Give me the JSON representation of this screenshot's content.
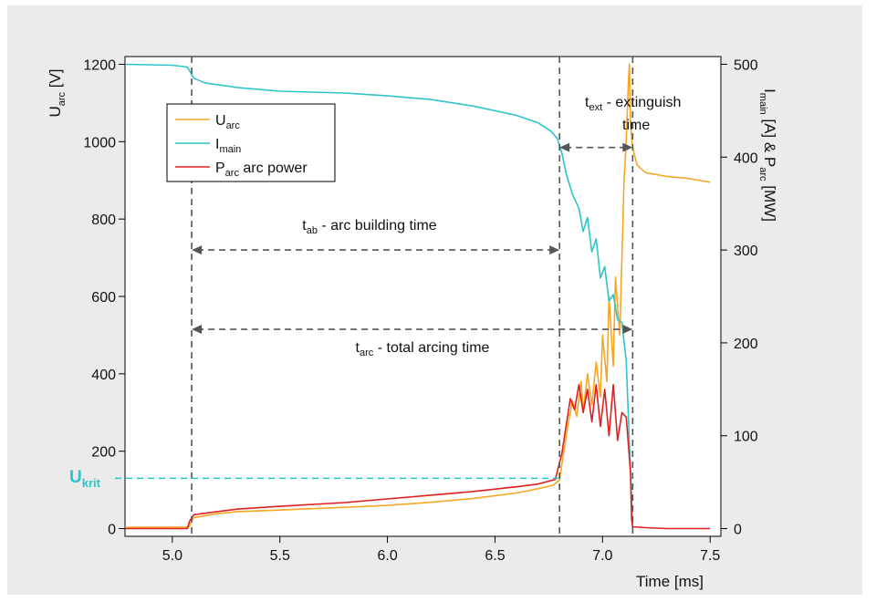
{
  "chart_data": {
    "type": "line",
    "xlabel": "Time [ms]",
    "x_ticks": [
      5.0,
      5.5,
      6.0,
      6.5,
      7.0,
      7.5
    ],
    "xlim": [
      4.78,
      7.55
    ],
    "y_left": {
      "label_main": "U",
      "label_sub": "arc",
      "label_unit": " [V]",
      "ylim": [
        -20,
        1220
      ],
      "ticks": [
        0,
        200,
        400,
        600,
        800,
        1000,
        1200
      ]
    },
    "y_right": {
      "label_main": "I",
      "label_sub": "main",
      "label_mid": " [A] & P",
      "label_sub2": "arc",
      "label_unit": " [MW]",
      "ylim": [
        -8.3,
        508.3
      ],
      "ticks": [
        0,
        100,
        200,
        300,
        400,
        500
      ]
    },
    "legend": {
      "placement": "top-left",
      "entries": [
        {
          "main": "U",
          "sub": "arc",
          "rest": ""
        },
        {
          "main": "I",
          "sub": "main",
          "rest": ""
        },
        {
          "main": "P",
          "sub": "arc",
          "rest": " arc power"
        }
      ]
    },
    "colors": {
      "U_arc": "#f5a623",
      "I_main": "#2ec4cc",
      "P_arc": "#e02020",
      "marker": "#555555",
      "ukrit": "#2ec4cc"
    },
    "series": [
      {
        "name": "U_arc",
        "axis": "left",
        "x": [
          4.78,
          5.07,
          5.08,
          5.09,
          5.1,
          5.2,
          5.3,
          5.5,
          5.8,
          6.0,
          6.2,
          6.4,
          6.6,
          6.7,
          6.77,
          6.8,
          6.82,
          6.84,
          6.86,
          6.88,
          6.9,
          6.91,
          6.93,
          6.95,
          6.97,
          6.99,
          7.0,
          7.02,
          7.03,
          7.05,
          7.06,
          7.08,
          7.1,
          7.11,
          7.12,
          7.125,
          7.13,
          7.135,
          7.14,
          7.16,
          7.2,
          7.3,
          7.4,
          7.5
        ],
        "y": [
          3,
          4,
          6,
          20,
          28,
          38,
          44,
          48,
          55,
          60,
          68,
          78,
          92,
          103,
          112,
          125,
          200,
          270,
          330,
          290,
          380,
          300,
          400,
          320,
          430,
          340,
          500,
          380,
          600,
          420,
          650,
          500,
          900,
          1000,
          1150,
          1200,
          1050,
          1010,
          985,
          940,
          920,
          910,
          905,
          895
        ]
      },
      {
        "name": "I_main",
        "axis": "right",
        "x": [
          4.78,
          5.0,
          5.07,
          5.1,
          5.15,
          5.3,
          5.5,
          5.8,
          6.0,
          6.2,
          6.4,
          6.6,
          6.7,
          6.76,
          6.79,
          6.81,
          6.83,
          6.86,
          6.89,
          6.91,
          6.93,
          6.95,
          6.97,
          6.99,
          7.01,
          7.03,
          7.05,
          7.07,
          7.09,
          7.11,
          7.13,
          7.14
        ],
        "y": [
          500,
          499,
          497,
          485,
          480,
          475,
          471,
          469,
          466,
          462,
          455,
          445,
          437,
          428,
          420,
          405,
          383,
          360,
          345,
          320,
          335,
          298,
          312,
          270,
          282,
          245,
          252,
          225,
          222,
          180,
          60,
          0
        ]
      },
      {
        "name": "P_arc",
        "axis": "right",
        "x": [
          4.78,
          5.07,
          5.08,
          5.1,
          5.2,
          5.3,
          5.5,
          5.8,
          6.0,
          6.2,
          6.4,
          6.6,
          6.7,
          6.78,
          6.81,
          6.83,
          6.85,
          6.87,
          6.89,
          6.91,
          6.93,
          6.95,
          6.97,
          6.99,
          7.01,
          7.03,
          7.05,
          7.07,
          7.09,
          7.11,
          7.13,
          7.135,
          7.14,
          7.2,
          7.3,
          7.5
        ],
        "y": [
          0,
          0,
          8,
          15,
          18,
          21,
          24,
          28,
          32,
          36,
          40,
          45,
          48,
          53,
          80,
          110,
          140,
          128,
          155,
          125,
          150,
          115,
          155,
          110,
          150,
          100,
          155,
          95,
          125,
          120,
          60,
          10,
          2,
          1,
          0,
          0
        ]
      }
    ],
    "annotations": {
      "t_ab": {
        "main": "t",
        "sub": "ab",
        "rest": " - arc building time",
        "x_start": 5.09,
        "x_end": 6.8,
        "y": 720
      },
      "t_arc": {
        "main": "t",
        "sub": "arc",
        "rest": " - total arcing time",
        "x_start": 5.09,
        "x_end": 7.14,
        "y": 515
      },
      "t_ext": {
        "main": "t",
        "sub": "ext",
        "rest": " - extinguish",
        "line2": "time",
        "x_start": 6.8,
        "x_end": 7.14,
        "y": 985
      },
      "u_krit": {
        "main": "U",
        "sub": "krit",
        "y": 130,
        "x_end": 6.8
      },
      "vlines": [
        5.09,
        6.8,
        7.14
      ]
    }
  }
}
